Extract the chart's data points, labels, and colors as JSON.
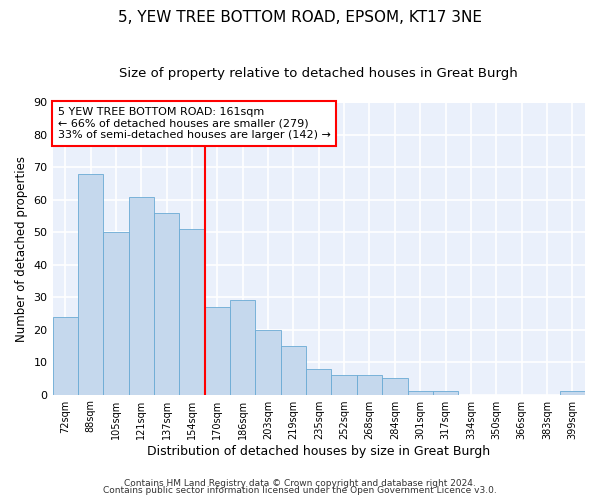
{
  "title": "5, YEW TREE BOTTOM ROAD, EPSOM, KT17 3NE",
  "subtitle": "Size of property relative to detached houses in Great Burgh",
  "xlabel": "Distribution of detached houses by size in Great Burgh",
  "ylabel": "Number of detached properties",
  "footer1": "Contains HM Land Registry data © Crown copyright and database right 2024.",
  "footer2": "Contains public sector information licensed under the Open Government Licence v3.0.",
  "bin_labels": [
    "72sqm",
    "88sqm",
    "105sqm",
    "121sqm",
    "137sqm",
    "154sqm",
    "170sqm",
    "186sqm",
    "203sqm",
    "219sqm",
    "235sqm",
    "252sqm",
    "268sqm",
    "284sqm",
    "301sqm",
    "317sqm",
    "334sqm",
    "350sqm",
    "366sqm",
    "383sqm",
    "399sqm"
  ],
  "bar_values": [
    24,
    68,
    50,
    61,
    56,
    51,
    27,
    29,
    20,
    15,
    8,
    6,
    6,
    5,
    1,
    1,
    0,
    0,
    0,
    0,
    1
  ],
  "bar_color": "#c5d8ed",
  "bar_edge_color": "#6aaad4",
  "vline_x_index": 6,
  "vline_color": "red",
  "annotation_text": "5 YEW TREE BOTTOM ROAD: 161sqm\n← 66% of detached houses are smaller (279)\n33% of semi-detached houses are larger (142) →",
  "annotation_box_color": "white",
  "annotation_box_edge": "red",
  "ylim": [
    0,
    90
  ],
  "yticks": [
    0,
    10,
    20,
    30,
    40,
    50,
    60,
    70,
    80,
    90
  ],
  "bg_color": "#eaf0fb",
  "grid_color": "white",
  "title_fontsize": 11,
  "subtitle_fontsize": 9.5,
  "tick_fontsize": 7,
  "ylabel_fontsize": 8.5,
  "xlabel_fontsize": 9,
  "footer_fontsize": 6.5,
  "annotation_fontsize": 8
}
